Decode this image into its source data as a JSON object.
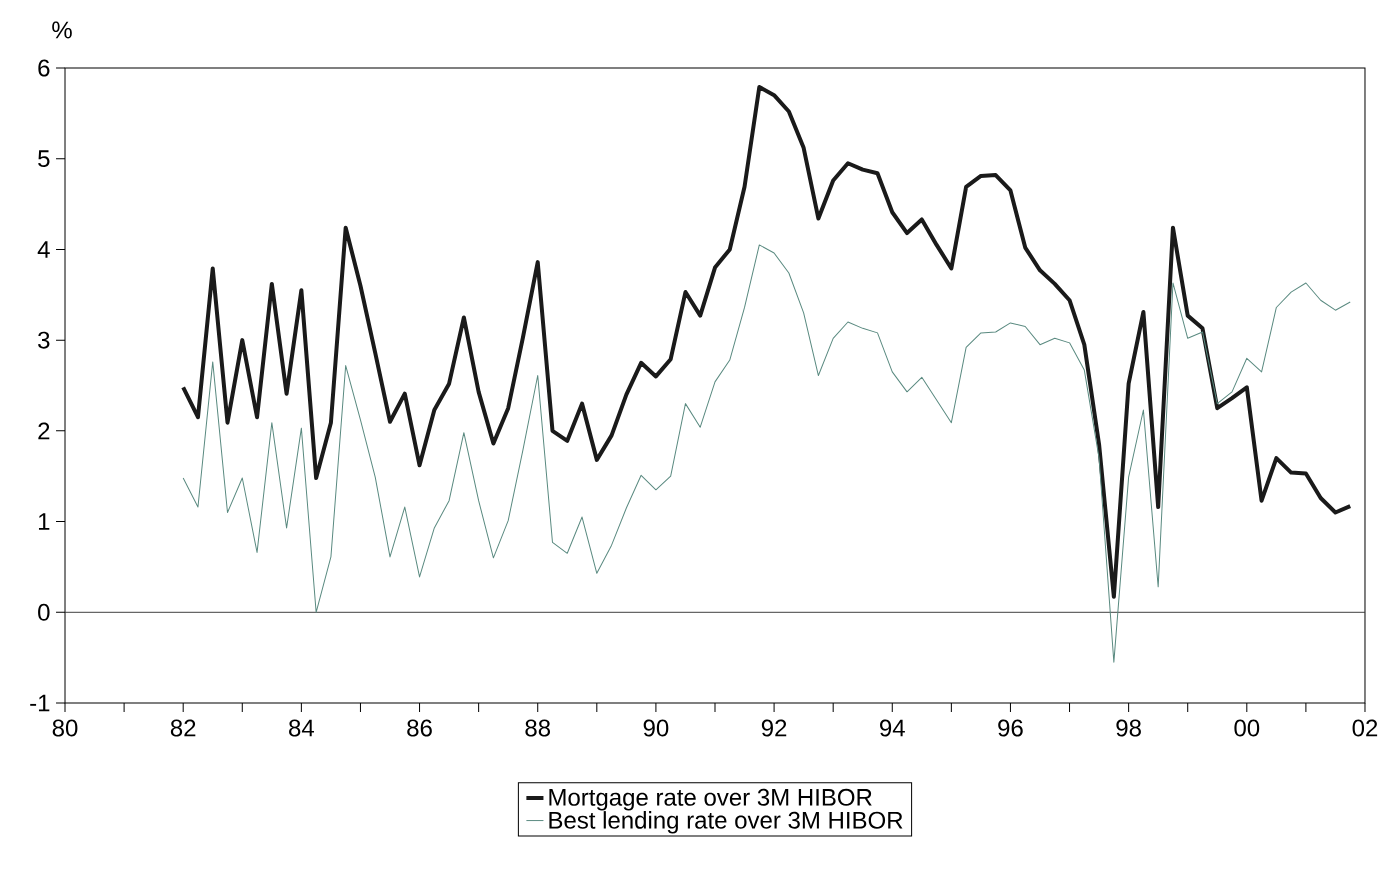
{
  "chart_data": {
    "type": "line",
    "ylabel": "%",
    "x": [
      1982.0,
      1982.25,
      1982.5,
      1982.75,
      1983.0,
      1983.25,
      1983.5,
      1983.75,
      1984.0,
      1984.25,
      1984.5,
      1984.75,
      1985.0,
      1985.25,
      1985.5,
      1985.75,
      1986.0,
      1986.25,
      1986.5,
      1986.75,
      1987.0,
      1987.25,
      1987.5,
      1987.75,
      1988.0,
      1988.25,
      1988.5,
      1988.75,
      1989.0,
      1989.25,
      1989.5,
      1989.75,
      1990.0,
      1990.25,
      1990.5,
      1990.75,
      1991.0,
      1991.25,
      1991.5,
      1991.75,
      1992.0,
      1992.25,
      1992.5,
      1992.75,
      1993.0,
      1993.25,
      1993.5,
      1993.75,
      1994.0,
      1994.25,
      1994.5,
      1994.75,
      1995.0,
      1995.25,
      1995.5,
      1995.75,
      1996.0,
      1996.25,
      1996.5,
      1996.75,
      1997.0,
      1997.25,
      1997.5,
      1997.75,
      1998.0,
      1998.25,
      1998.5,
      1998.75,
      1999.0,
      1999.25,
      1999.5,
      1999.75,
      2000.0,
      2000.25,
      2000.5,
      2000.75,
      2001.0,
      2001.25,
      2001.5,
      2001.75
    ],
    "series": [
      {
        "name": "Mortgage rate over 3M HIBOR",
        "color": "#1a1a1a",
        "values": [
          2.48,
          2.15,
          3.79,
          2.09,
          3.0,
          2.15,
          3.62,
          2.41,
          3.55,
          1.48,
          2.09,
          4.24,
          3.6,
          2.86,
          2.1,
          2.41,
          1.62,
          2.23,
          2.52,
          3.25,
          2.43,
          1.86,
          2.25,
          3.03,
          3.86,
          2.0,
          1.89,
          2.3,
          1.68,
          1.95,
          2.4,
          2.75,
          2.6,
          2.79,
          3.53,
          3.27,
          3.8,
          4.0,
          4.69,
          5.79,
          5.7,
          5.52,
          5.12,
          4.34,
          4.76,
          4.95,
          4.88,
          4.84,
          4.41,
          4.18,
          4.33,
          4.05,
          3.79,
          4.69,
          4.81,
          4.82,
          4.65,
          4.02,
          3.77,
          3.62,
          3.44,
          2.95,
          1.85,
          0.17,
          2.52,
          3.31,
          1.16,
          4.24,
          3.27,
          3.13,
          2.25,
          2.36,
          2.48,
          1.23,
          1.7,
          1.54,
          1.53,
          1.26,
          1.1,
          1.17
        ]
      },
      {
        "name": "Best lending rate over 3M HIBOR",
        "color": "#5a8a80",
        "values": [
          1.48,
          1.16,
          2.76,
          1.1,
          1.48,
          0.66,
          2.09,
          0.93,
          2.03,
          0.0,
          0.61,
          2.72,
          2.12,
          1.49,
          0.61,
          1.16,
          0.39,
          0.93,
          1.23,
          1.98,
          1.23,
          0.6,
          1.01,
          1.79,
          2.61,
          0.77,
          0.65,
          1.05,
          0.43,
          0.74,
          1.15,
          1.51,
          1.35,
          1.5,
          2.3,
          2.04,
          2.54,
          2.78,
          3.36,
          4.05,
          3.96,
          3.74,
          3.3,
          2.61,
          3.02,
          3.2,
          3.13,
          3.08,
          2.65,
          2.43,
          2.59,
          2.34,
          2.09,
          2.92,
          3.08,
          3.09,
          3.19,
          3.15,
          2.95,
          3.02,
          2.97,
          2.67,
          1.7,
          -0.55,
          1.49,
          2.23,
          0.28,
          3.63,
          3.02,
          3.09,
          2.3,
          2.43,
          2.8,
          2.65,
          3.36,
          3.53,
          3.63,
          3.44,
          3.33,
          3.42
        ]
      }
    ],
    "xlim": [
      1980,
      2002
    ],
    "ylim": [
      -1,
      6
    ],
    "xticks": [
      {
        "value": 1980,
        "label": "80"
      },
      {
        "value": 1981,
        "label": null
      },
      {
        "value": 1982,
        "label": "82"
      },
      {
        "value": 1983,
        "label": null
      },
      {
        "value": 1984,
        "label": "84"
      },
      {
        "value": 1985,
        "label": null
      },
      {
        "value": 1986,
        "label": "86"
      },
      {
        "value": 1987,
        "label": null
      },
      {
        "value": 1988,
        "label": "88"
      },
      {
        "value": 1989,
        "label": null
      },
      {
        "value": 1990,
        "label": "90"
      },
      {
        "value": 1991,
        "label": null
      },
      {
        "value": 1992,
        "label": "92"
      },
      {
        "value": 1993,
        "label": null
      },
      {
        "value": 1994,
        "label": "94"
      },
      {
        "value": 1995,
        "label": null
      },
      {
        "value": 1996,
        "label": "96"
      },
      {
        "value": 1997,
        "label": null
      },
      {
        "value": 1998,
        "label": "98"
      },
      {
        "value": 1999,
        "label": null
      },
      {
        "value": 2000,
        "label": "00"
      },
      {
        "value": 2001,
        "label": null
      },
      {
        "value": 2002,
        "label": "02"
      }
    ],
    "yticks": [
      -1,
      0,
      1,
      2,
      3,
      4,
      5,
      6
    ],
    "ref_lines": [
      {
        "axis": "y",
        "value": 0,
        "color": "#333333"
      }
    ],
    "grid": false,
    "legend": "bottom",
    "marker": "none",
    "line_style": "solid"
  }
}
